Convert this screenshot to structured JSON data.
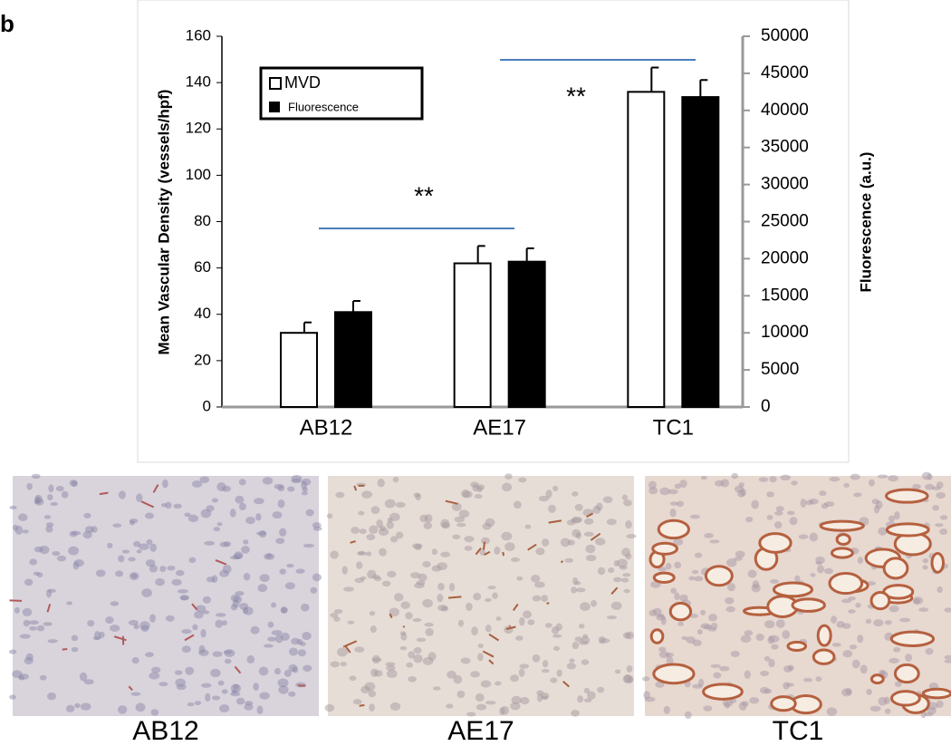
{
  "panel_label": "b",
  "chart_data": {
    "type": "bar",
    "y_label": "Mean Vascular Density (vessels/hpf)",
    "y2_label": "Fluorescence (a.u.)",
    "categories": [
      "AB12",
      "AE17",
      "TC1"
    ],
    "series": [
      {
        "name": "MVD",
        "color": "#ffffff",
        "values": [
          32,
          62,
          136
        ],
        "errors": [
          4.5,
          7.5,
          10.5
        ]
      },
      {
        "name": "Fluorescence",
        "color": "#000000",
        "axis": "y2",
        "values": [
          12800,
          19600,
          41800
        ],
        "errors": [
          1500,
          1800,
          2300
        ]
      }
    ],
    "ylim": [
      0,
      160
    ],
    "yticks": [
      0,
      20,
      40,
      60,
      80,
      100,
      120,
      140,
      160
    ],
    "y2lim": [
      0,
      50000
    ],
    "y2ticks": [
      0,
      5000,
      10000,
      15000,
      20000,
      25000,
      30000,
      35000,
      40000,
      45000,
      50000
    ],
    "annotations": [
      "**",
      "**"
    ],
    "grid": false
  },
  "images": [
    {
      "label": "AB12"
    },
    {
      "label": "AE17"
    },
    {
      "label": "TC1"
    }
  ]
}
